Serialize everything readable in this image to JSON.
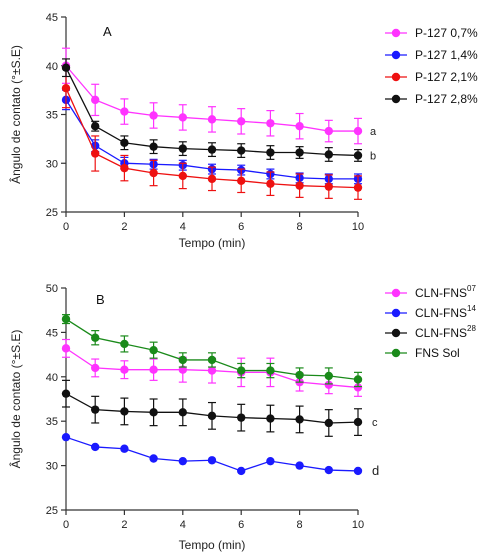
{
  "chart_data": [
    {
      "type": "line",
      "panel_label": "A",
      "xlabel": "Tempo (min)",
      "ylabel": "Ângulo de contato (°±S.E)",
      "xlim": [
        0,
        10
      ],
      "ylim": [
        25,
        45
      ],
      "xticks": [
        0,
        2,
        4,
        6,
        8,
        10
      ],
      "yticks": [
        25,
        30,
        35,
        40,
        45
      ],
      "x": [
        0,
        1,
        2,
        3,
        4,
        5,
        6,
        7,
        8,
        9,
        10
      ],
      "legend_position": "right",
      "series": [
        {
          "name": "P-127 0,7%",
          "sup": "",
          "color": "#ff33ff",
          "values": [
            40.0,
            36.5,
            35.3,
            34.9,
            34.7,
            34.5,
            34.3,
            34.1,
            33.8,
            33.3,
            33.3
          ],
          "errors": [
            1.8,
            1.6,
            1.3,
            1.3,
            1.3,
            1.3,
            1.3,
            1.3,
            1.3,
            1.1,
            1.3
          ],
          "annotation": "a"
        },
        {
          "name": "P-127 1,4%",
          "sup": "",
          "color": "#1a1aff",
          "values": [
            36.5,
            31.8,
            30.0,
            29.9,
            29.8,
            29.4,
            29.3,
            28.9,
            28.5,
            28.4,
            28.4
          ],
          "errors": [
            1.0,
            0.6,
            0.6,
            0.5,
            0.5,
            0.5,
            0.5,
            0.5,
            0.5,
            0.5,
            0.5
          ],
          "annotation": ""
        },
        {
          "name": "P-127 2,1%",
          "sup": "",
          "color": "#ee1111",
          "values": [
            37.7,
            31.0,
            29.5,
            29.0,
            28.7,
            28.4,
            28.2,
            27.9,
            27.7,
            27.6,
            27.5
          ],
          "errors": [
            2.0,
            1.8,
            1.3,
            1.3,
            1.3,
            1.2,
            1.2,
            1.2,
            1.2,
            1.2,
            1.2
          ],
          "annotation": ""
        },
        {
          "name": "P-127 2,8%",
          "sup": "",
          "color": "#111111",
          "values": [
            39.8,
            33.8,
            32.1,
            31.7,
            31.5,
            31.4,
            31.3,
            31.1,
            31.1,
            30.9,
            30.8
          ],
          "errors": [
            0.9,
            0.5,
            0.7,
            0.7,
            0.7,
            0.7,
            0.7,
            0.7,
            0.6,
            0.7,
            0.6
          ],
          "annotation": "b"
        }
      ]
    },
    {
      "type": "line",
      "panel_label": "B",
      "xlabel": "Tempo (min)",
      "ylabel": "Ângulo de contato (°±S.E)",
      "xlim": [
        0,
        10
      ],
      "ylim": [
        25,
        50
      ],
      "xticks": [
        0,
        2,
        4,
        6,
        8,
        10
      ],
      "yticks": [
        25,
        30,
        35,
        40,
        45,
        50
      ],
      "x": [
        0,
        1,
        2,
        3,
        4,
        5,
        6,
        7,
        8,
        9,
        10
      ],
      "legend_position": "top-right",
      "series": [
        {
          "name": "CLN-FNS",
          "sup": "07",
          "color": "#ff33ff",
          "values": [
            43.2,
            41.0,
            40.8,
            40.8,
            40.8,
            40.7,
            40.5,
            40.5,
            39.4,
            39.1,
            38.8
          ],
          "errors": [
            1.0,
            1.0,
            1.0,
            1.2,
            1.4,
            1.4,
            1.6,
            1.6,
            1.0,
            1.0,
            1.0
          ],
          "annotation": ""
        },
        {
          "name": "CLN-FNS",
          "sup": "14",
          "color": "#1a1aff",
          "values": [
            33.2,
            32.1,
            31.9,
            30.8,
            30.5,
            30.6,
            29.4,
            30.5,
            30.0,
            29.5,
            29.4
          ],
          "errors": [
            0,
            0,
            0,
            0,
            0,
            0,
            0,
            0,
            0,
            0,
            0
          ],
          "annotation": "d"
        },
        {
          "name": "CLN-FNS",
          "sup": "28",
          "color": "#111111",
          "values": [
            38.1,
            36.3,
            36.1,
            36.0,
            36.0,
            35.6,
            35.4,
            35.3,
            35.2,
            34.8,
            34.9
          ],
          "errors": [
            1.5,
            1.5,
            1.5,
            1.5,
            1.5,
            1.5,
            1.5,
            1.5,
            1.5,
            1.5,
            1.5
          ],
          "annotation": "c"
        },
        {
          "name": "FNS Sol",
          "sup": "",
          "color": "#1a8a1a",
          "values": [
            46.5,
            44.4,
            43.7,
            43.0,
            41.9,
            41.9,
            40.7,
            40.7,
            40.2,
            40.1,
            39.7
          ],
          "errors": [
            0.5,
            0.8,
            0.9,
            0.9,
            0.8,
            0.8,
            0.8,
            0.8,
            0.8,
            0.9,
            0.8
          ],
          "annotation": ""
        }
      ]
    }
  ]
}
